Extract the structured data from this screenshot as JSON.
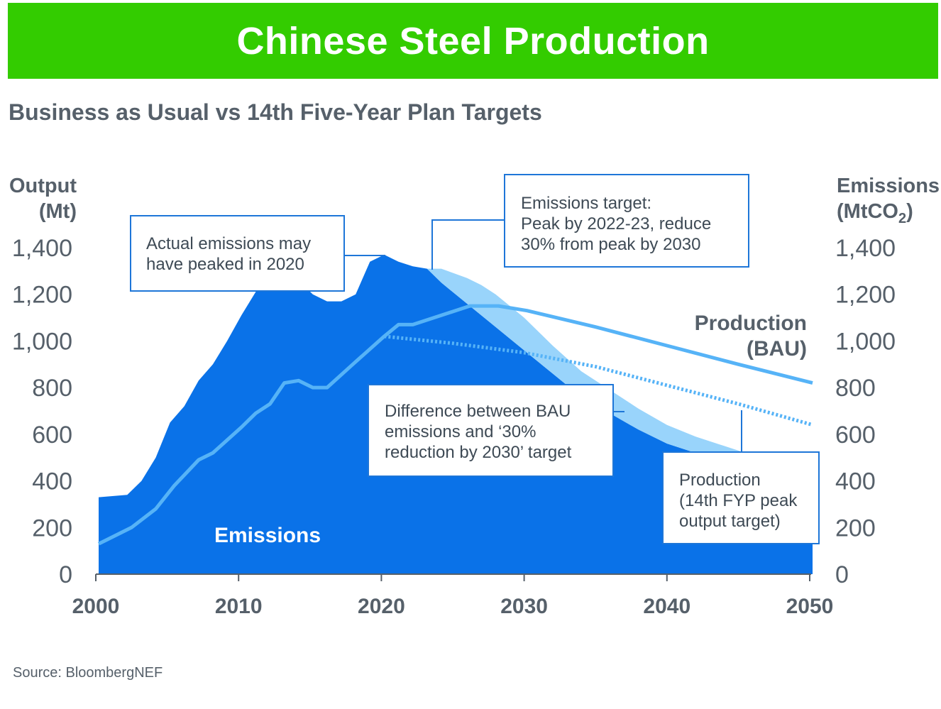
{
  "header": {
    "title": "Chinese Steel Production",
    "subtitle": "Business as Usual vs 14th Five-Year Plan Targets"
  },
  "source": "Source: BloombergNEF",
  "chart_data": {
    "type": "area",
    "left_axis": {
      "label_lines": [
        "Output",
        "(Mt)"
      ],
      "ylim": [
        0,
        1400
      ]
    },
    "right_axis": {
      "label_line1": "Emissions",
      "label_line2_main": "(MtCO",
      "label_line2_sub": "2",
      "label_line2_end": ")",
      "ylim": [
        0,
        1400
      ]
    },
    "y_ticks": [
      "0",
      "200",
      "400",
      "600",
      "800",
      "1,000",
      "1,200",
      "1,400"
    ],
    "y_tick_values": [
      0,
      200,
      400,
      600,
      800,
      1000,
      1200,
      1400
    ],
    "x_ticks": [
      "2000",
      "2010",
      "2020",
      "2030",
      "2040",
      "2050"
    ],
    "x_tick_values": [
      2000,
      2010,
      2020,
      2030,
      2040,
      2050
    ],
    "xlim": [
      2000,
      2050
    ],
    "colors": {
      "emissions_fill": "#0a72e8",
      "difference_fill": "#99d4fb",
      "production_line": "#56b3f7",
      "annotation_line": "#1e76d8"
    },
    "series": [
      {
        "name": "Emissions",
        "kind": "area",
        "x": [
          2000.2,
          2002.2,
          2003.2,
          2004.2,
          2005.2,
          2006.2,
          2007.2,
          2008.2,
          2009.2,
          2010.2,
          2011.2,
          2012.2,
          2013.2,
          2014.2,
          2015.2,
          2016.2,
          2017.2,
          2018.2,
          2019.2,
          2020.2,
          2021.2,
          2022.2,
          2023.2,
          2024.2,
          2026.0,
          2028.0,
          2030.0,
          2032.0,
          2034.0,
          2036.0,
          2038.0,
          2040.0,
          2042.0,
          2044.0,
          2046.0,
          2048.0,
          2050.2
        ],
        "y": [
          330,
          340,
          400,
          500,
          650,
          720,
          830,
          900,
          1000,
          1110,
          1210,
          1280,
          1300,
          1260,
          1200,
          1170,
          1170,
          1200,
          1340,
          1370,
          1340,
          1320,
          1310,
          1250,
          1160,
          1060,
          960,
          860,
          760,
          690,
          620,
          560,
          520,
          490,
          450,
          410,
          370
        ]
      },
      {
        "name": "Difference between BAU emissions and ‘30% reduction by 2030’ target",
        "kind": "band",
        "x": [
          2023.2,
          2024.2,
          2026.0,
          2027.0,
          2028.0,
          2029.0,
          2030.0,
          2032.0,
          2034.0,
          2036.0,
          2038.0,
          2040.0,
          2042.0,
          2044.0,
          2046.0
        ],
        "y_upper": [
          1310,
          1310,
          1270,
          1240,
          1200,
          1150,
          1100,
          980,
          870,
          790,
          710,
          640,
          590,
          550,
          510
        ],
        "y_lower": [
          1310,
          1250,
          1160,
          1110,
          1060,
          1010,
          960,
          860,
          760,
          690,
          620,
          560,
          520,
          490,
          450
        ]
      },
      {
        "name": "Production (BAU)",
        "kind": "line",
        "x": [
          2000.2,
          2002.5,
          2004.2,
          2005.5,
          2007.2,
          2008.2,
          2010.2,
          2011.2,
          2012.2,
          2013.2,
          2014.2,
          2015.2,
          2016.2,
          2018.0,
          2020.2,
          2021.2,
          2022.2,
          2024.2,
          2026.2,
          2028.2,
          2030.2,
          2035.0,
          2040.0,
          2045.0,
          2050.2
        ],
        "y": [
          130,
          200,
          280,
          380,
          490,
          520,
          630,
          690,
          730,
          820,
          830,
          800,
          800,
          900,
          1020,
          1070,
          1070,
          1110,
          1150,
          1150,
          1130,
          1060,
          980,
          900,
          820
        ]
      },
      {
        "name": "Production (14th FYP peak output target)",
        "kind": "dotted-line",
        "x": [
          2020.2,
          2025.0,
          2030.0,
          2035.0,
          2040.0,
          2045.0,
          2050.2
        ],
        "y": [
          1020,
          990,
          950,
          890,
          810,
          730,
          640
        ]
      }
    ],
    "annotations": {
      "actual_peak": [
        "Actual emissions may",
        "have peaked in 2020"
      ],
      "emissions_target": [
        "Emissions target:",
        "Peak by 2022-23, reduce",
        "30% from peak by 2030"
      ],
      "difference": [
        "Difference between BAU",
        "emissions and ‘30%",
        "reduction by 2030’ target"
      ],
      "fyp_production": [
        "Production",
        "(14th FYP peak",
        "output target)"
      ],
      "bau_label": [
        "Production",
        "(BAU)"
      ],
      "emissions_label": "Emissions"
    }
  }
}
